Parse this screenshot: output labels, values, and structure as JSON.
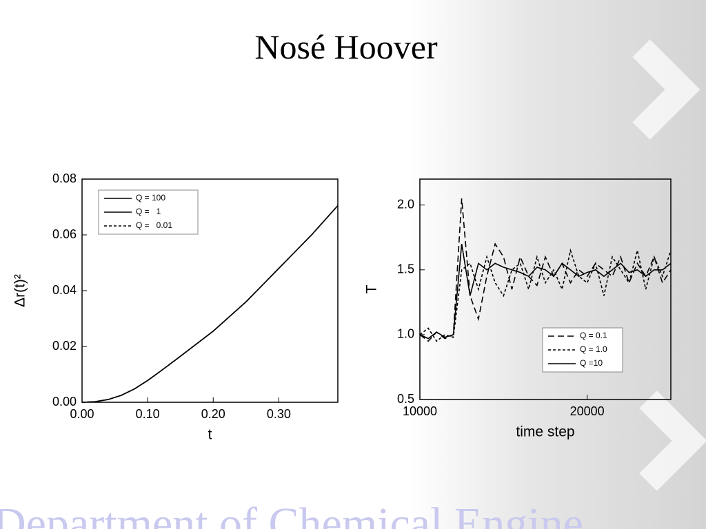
{
  "title": "Nosé Hoover",
  "footer": "Department of Chemical Engine",
  "chart_data": [
    {
      "type": "line",
      "xlabel": "t",
      "ylabel": "Δr(t)²",
      "x": [
        0,
        0.02,
        0.04,
        0.06,
        0.08,
        0.1,
        0.12,
        0.15,
        0.2,
        0.25,
        0.3,
        0.35,
        0.39
      ],
      "series": [
        {
          "name": "Q = 100",
          "color": "#000000",
          "linestyle": "solid",
          "values": [
            0,
            0.0002,
            0.001,
            0.0025,
            0.0048,
            0.0078,
            0.0112,
            0.0165,
            0.0255,
            0.036,
            0.048,
            0.06,
            0.0705
          ]
        },
        {
          "name": "Q =   1",
          "color": "#000000",
          "linestyle": "solid",
          "values": [
            0,
            0.0002,
            0.001,
            0.0025,
            0.0048,
            0.0078,
            0.0112,
            0.0165,
            0.0255,
            0.036,
            0.048,
            0.06,
            0.0705
          ]
        },
        {
          "name": "Q =   0.01",
          "color": "#000000",
          "linestyle": "dotted",
          "values": [
            0,
            0.0002,
            0.001,
            0.0025,
            0.0048,
            0.0078,
            0.0112,
            0.0165,
            0.0255,
            0.036,
            0.048,
            0.06,
            0.0705
          ]
        }
      ],
      "xlim": [
        0,
        0.39
      ],
      "xticks": [
        {
          "value": 0,
          "label": "0.00"
        },
        {
          "value": 0.1,
          "label": "0.10"
        },
        {
          "value": 0.2,
          "label": "0.20"
        },
        {
          "value": 0.3,
          "label": "0.30"
        }
      ],
      "ylim": [
        0,
        0.08
      ],
      "yticks": [
        {
          "value": 0,
          "label": "0.00"
        },
        {
          "value": 0.02,
          "label": "0.02"
        },
        {
          "value": 0.04,
          "label": "0.04"
        },
        {
          "value": 0.06,
          "label": "0.06"
        },
        {
          "value": 0.08,
          "label": "0.08"
        }
      ],
      "legend": "upper left"
    },
    {
      "type": "line",
      "xlabel": "time step",
      "ylabel": "T",
      "x": [
        10000,
        10500,
        11000,
        11500,
        12000,
        12500,
        13000,
        13500,
        14000,
        14500,
        15000,
        15500,
        16000,
        16500,
        17000,
        17500,
        18000,
        18500,
        19000,
        19500,
        20000,
        20500,
        21000,
        21500,
        22000,
        22500,
        23000,
        23500,
        24000,
        24500,
        25000
      ],
      "series": [
        {
          "name": "Q = 0.1",
          "color": "#000000",
          "linestyle": "dashed",
          "values": [
            1.0,
            0.95,
            1.02,
            0.97,
            1.0,
            2.05,
            1.3,
            1.12,
            1.45,
            1.7,
            1.6,
            1.35,
            1.6,
            1.45,
            1.38,
            1.6,
            1.45,
            1.55,
            1.4,
            1.5,
            1.45,
            1.55,
            1.5,
            1.45,
            1.6,
            1.4,
            1.55,
            1.45,
            1.6,
            1.4,
            1.5
          ]
        },
        {
          "name": "Q = 1.0",
          "color": "#000000",
          "linestyle": "dotted",
          "values": [
            1.0,
            1.05,
            0.95,
            1.0,
            0.98,
            1.5,
            1.55,
            1.35,
            1.6,
            1.4,
            1.3,
            1.5,
            1.55,
            1.35,
            1.6,
            1.4,
            1.5,
            1.35,
            1.65,
            1.45,
            1.4,
            1.55,
            1.3,
            1.6,
            1.5,
            1.4,
            1.65,
            1.35,
            1.6,
            1.45,
            1.65
          ]
        },
        {
          "name": "Q =10",
          "color": "#000000",
          "linestyle": "solid",
          "values": [
            1.0,
            0.97,
            1.02,
            0.98,
            1.0,
            1.7,
            1.3,
            1.55,
            1.5,
            1.55,
            1.52,
            1.5,
            1.48,
            1.45,
            1.52,
            1.5,
            1.45,
            1.55,
            1.5,
            1.45,
            1.48,
            1.5,
            1.45,
            1.5,
            1.55,
            1.48,
            1.5,
            1.45,
            1.5,
            1.5,
            1.55
          ]
        }
      ],
      "xlim": [
        10000,
        25000
      ],
      "xticks": [
        10000,
        20000
      ],
      "ylim": [
        0.5,
        2.2
      ],
      "yticks": [
        0.5,
        {
          "value": 1.0,
          "label": "1.0"
        },
        1.5,
        {
          "value": 2.0,
          "label": "2.0"
        }
      ],
      "legend": "lower right"
    }
  ]
}
